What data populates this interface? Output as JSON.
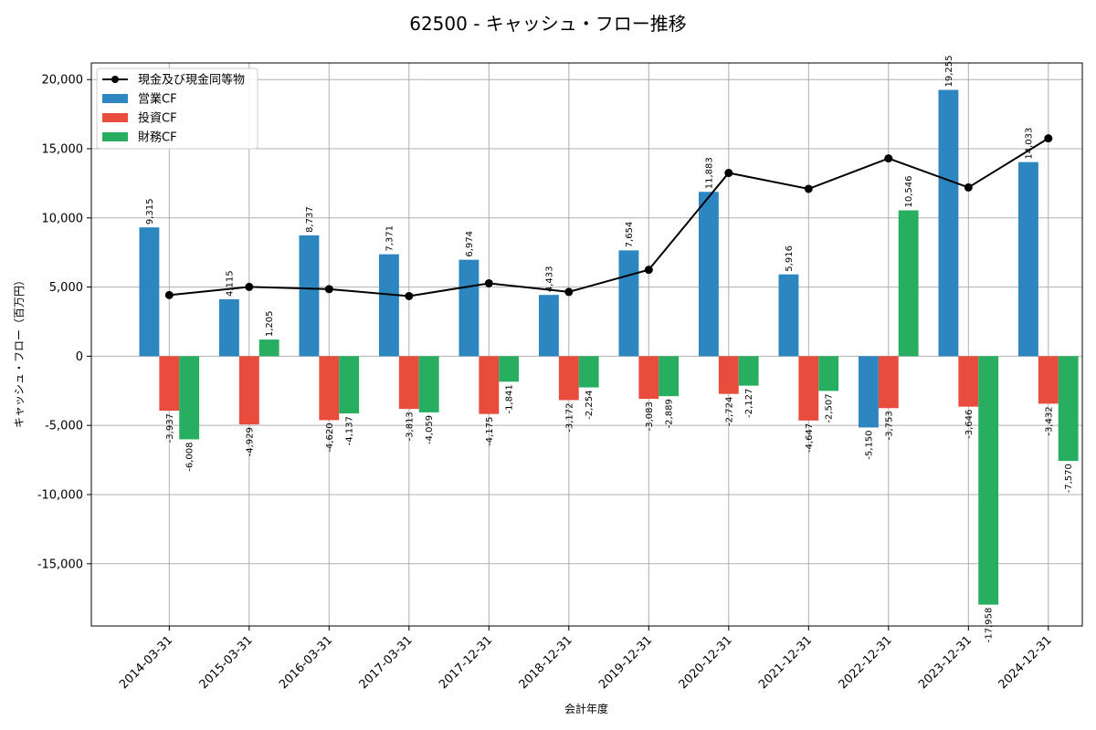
{
  "chart_data": {
    "type": "bar",
    "title": "62500 - キャッシュ・フロー推移",
    "xlabel": "会計年度",
    "ylabel": "キャッシュ・フロー（百万円）",
    "ylim": [
      -19500,
      21200
    ],
    "yticks": [
      -15000,
      -10000,
      -5000,
      0,
      5000,
      10000,
      15000,
      20000
    ],
    "ytick_labels": [
      "-15,000",
      "-10,000",
      "-5,000",
      "0",
      "5,000",
      "10,000",
      "15,000",
      "20,000"
    ],
    "grid": true,
    "legend_position": "top-left",
    "categories": [
      "2014-03-31",
      "2015-03-31",
      "2016-03-31",
      "2017-03-31",
      "2017-12-31",
      "2018-12-31",
      "2019-12-31",
      "2020-12-31",
      "2021-12-31",
      "2022-12-31",
      "2023-12-31",
      "2024-12-31"
    ],
    "series": [
      {
        "name": "営業CF",
        "type": "bar",
        "color": "#2e86c1",
        "values": [
          9315,
          4115,
          8737,
          7371,
          6974,
          4433,
          7654,
          11883,
          5916,
          -5150,
          19255,
          14033
        ],
        "labels": [
          "9,315",
          "4,115",
          "8,737",
          "7,371",
          "6,974",
          "4,433",
          "7,654",
          "11,883",
          "5,916",
          "-5,150",
          "19,255",
          "14,033"
        ]
      },
      {
        "name": "投資CF",
        "type": "bar",
        "color": "#e74c3c",
        "values": [
          -3937,
          -4929,
          -4620,
          -3813,
          -4175,
          -3172,
          -3083,
          -2724,
          -4647,
          -3753,
          -3646,
          -3432
        ],
        "labels": [
          "-3,937",
          "-4,929",
          "-4,620",
          "-3,813",
          "-4,175",
          "-3,172",
          "-3,083",
          "-2,724",
          "-4,647",
          "-3,753",
          "-3,646",
          "-3,432"
        ]
      },
      {
        "name": "財務CF",
        "type": "bar",
        "color": "#27ae60",
        "values": [
          -6008,
          1205,
          -4137,
          -4059,
          -1841,
          -2254,
          -2889,
          -2127,
          -2507,
          10546,
          -17958,
          -7570
        ],
        "labels": [
          "-6,008",
          "1,205",
          "-4,137",
          "-4,059",
          "-1,841",
          "-2,254",
          "-2,889",
          "-2,127",
          "-2,507",
          "10,546",
          "-17,958",
          "-7,570"
        ]
      },
      {
        "name": "現金及び現金同等物",
        "type": "line",
        "color": "#000000",
        "values": [
          4420,
          5010,
          4850,
          4350,
          5270,
          4650,
          6250,
          13250,
          12100,
          14300,
          12200,
          15750
        ]
      }
    ]
  }
}
